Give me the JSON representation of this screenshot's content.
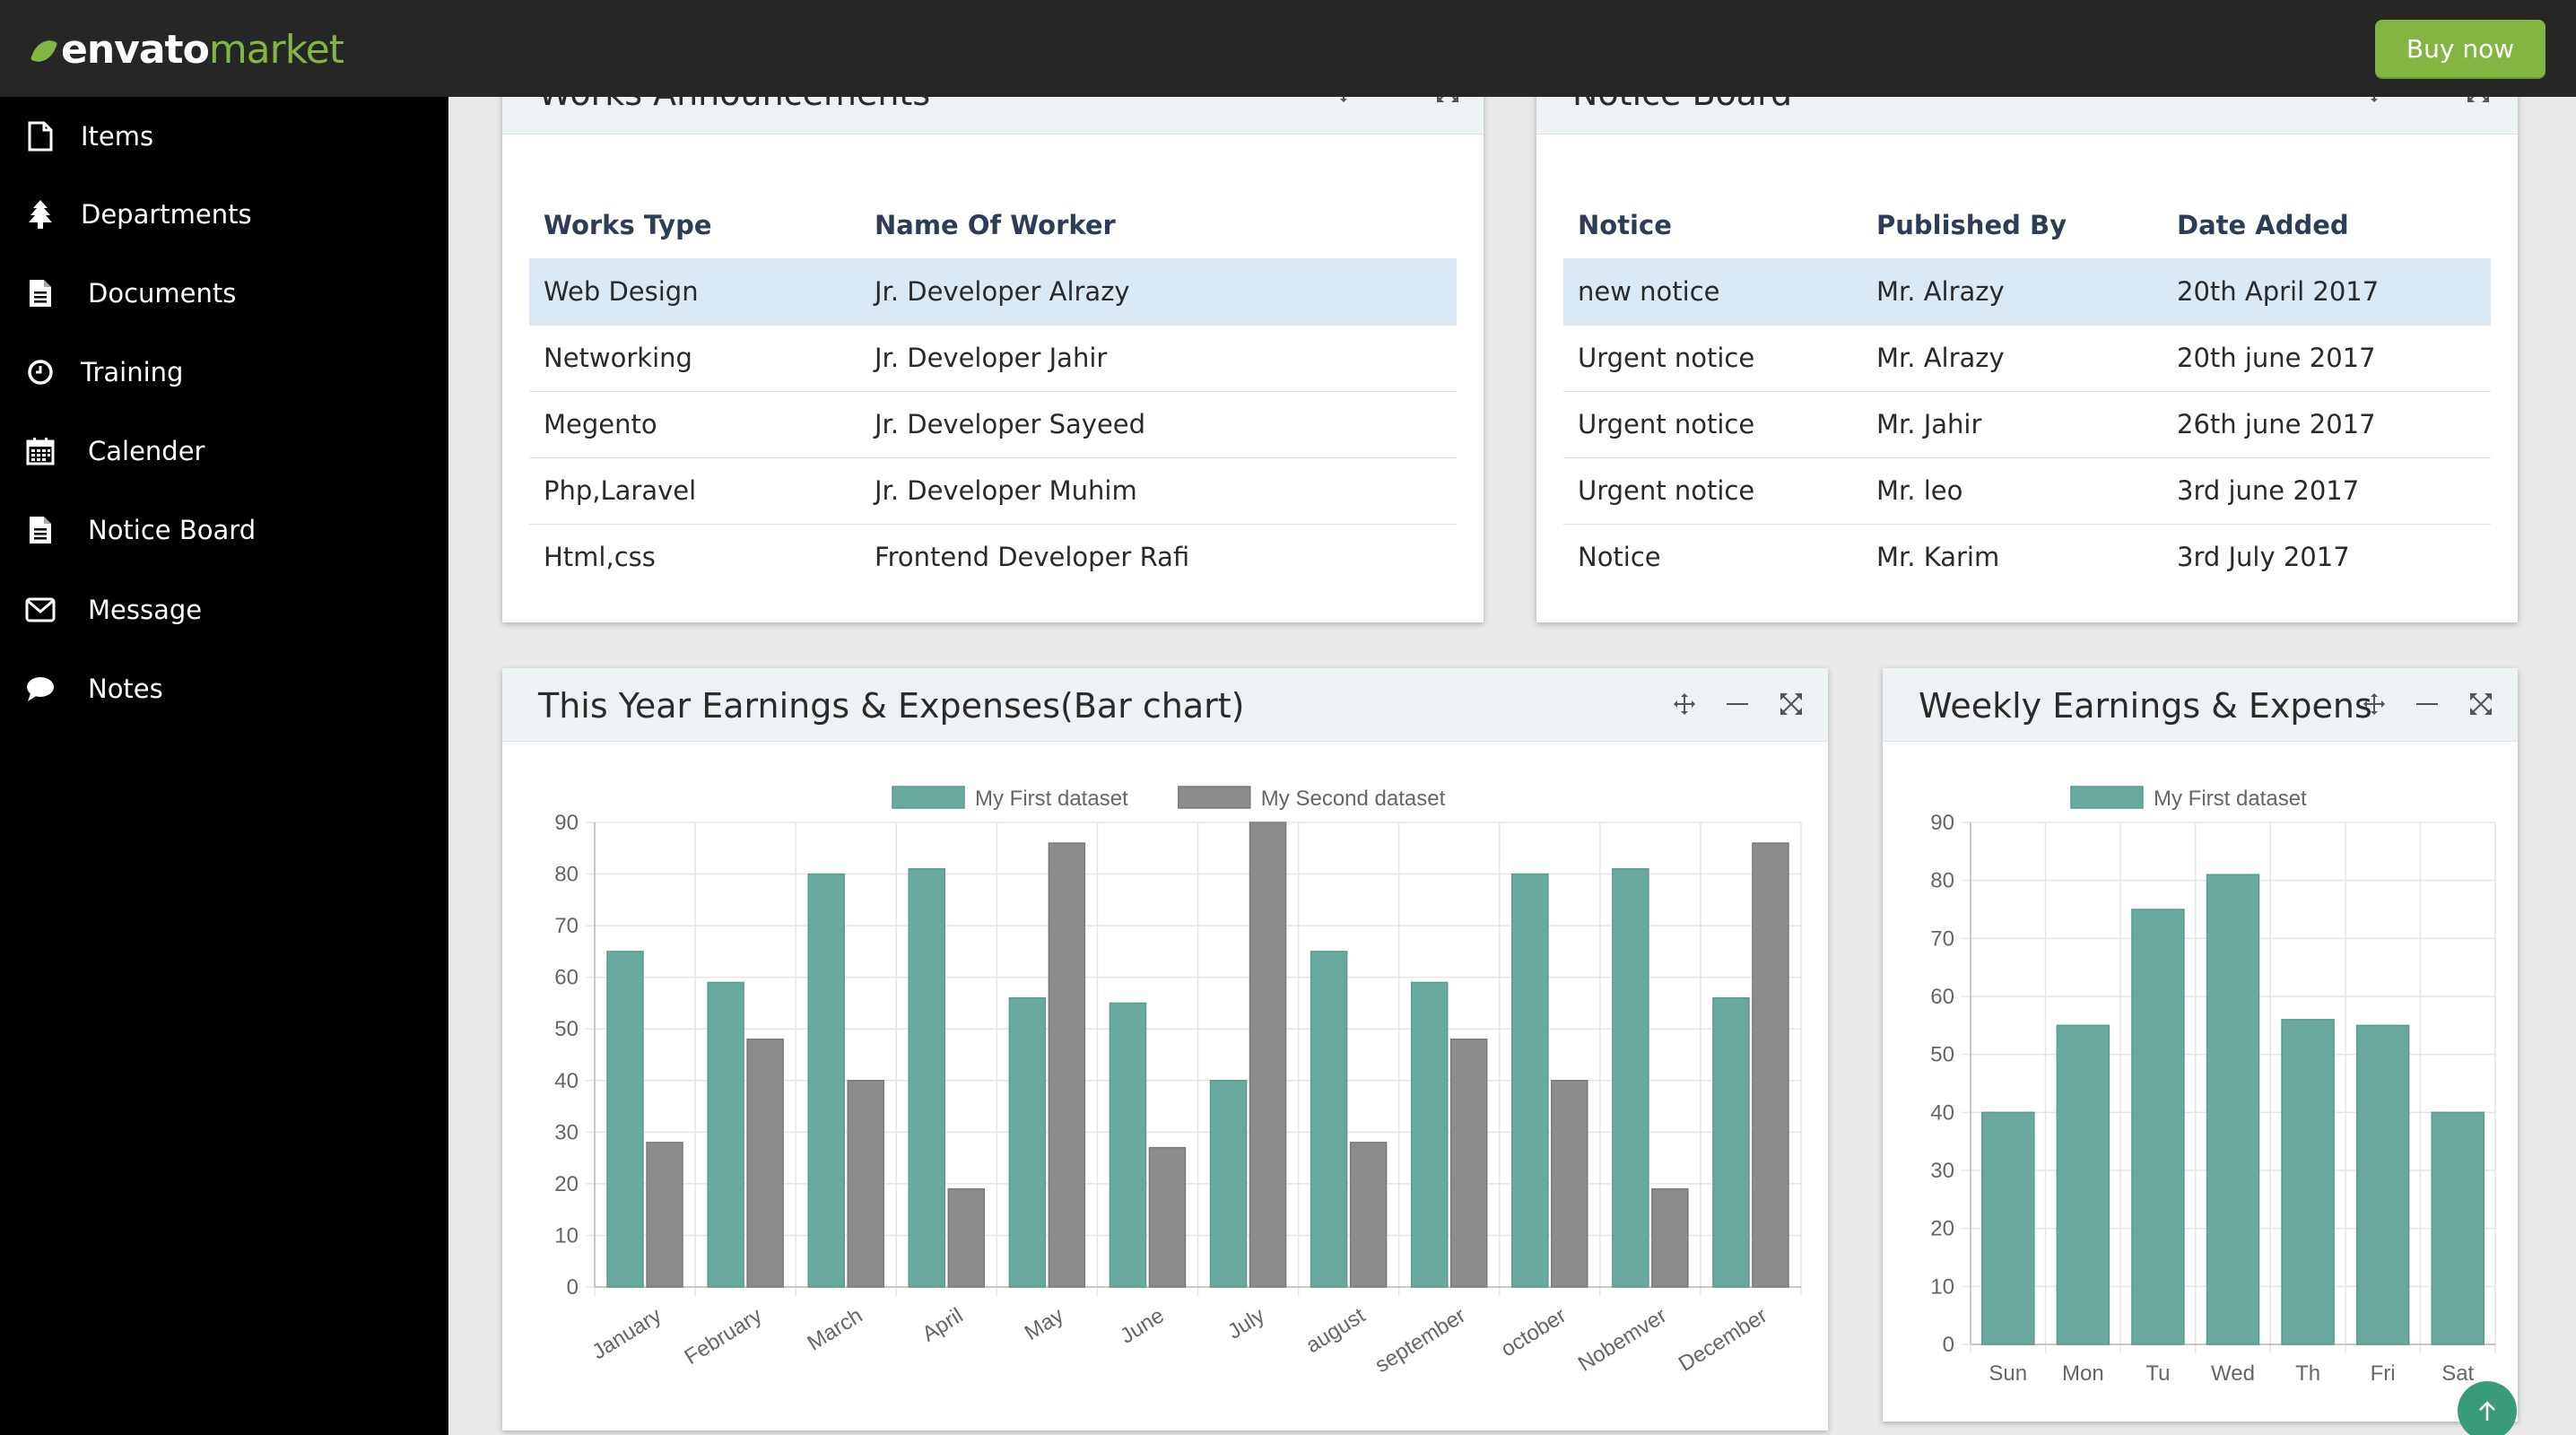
{
  "brand": {
    "name_a": "envato",
    "name_b": "market",
    "buy_label": "Buy now"
  },
  "sidebar": {
    "items": [
      {
        "label": "Items",
        "icon": "file-icon"
      },
      {
        "label": "Departments",
        "icon": "tree-icon"
      },
      {
        "label": "Documents",
        "icon": "document-icon"
      },
      {
        "label": "Training",
        "icon": "clock-icon"
      },
      {
        "label": "Calender",
        "icon": "calendar-icon"
      },
      {
        "label": "Notice Board",
        "icon": "document-icon"
      },
      {
        "label": "Message",
        "icon": "envelope-icon"
      },
      {
        "label": "Notes",
        "icon": "comment-icon"
      }
    ]
  },
  "works": {
    "title": "Works Announcements",
    "headers": [
      "Works Type",
      "Name Of Worker"
    ],
    "rows": [
      [
        "Web Design",
        "Jr. Developer Alrazy"
      ],
      [
        "Networking",
        "Jr. Developer Jahir"
      ],
      [
        "Megento",
        "Jr. Developer Sayeed"
      ],
      [
        "Php,Laravel",
        "Jr. Developer Muhim"
      ],
      [
        "Html,css",
        "Frontend Developer Rafi"
      ]
    ]
  },
  "notice": {
    "title": "Notice Board",
    "headers": [
      "Notice",
      "Published By",
      "Date Added"
    ],
    "rows": [
      [
        "new notice",
        "Mr. Alrazy",
        "20th April 2017"
      ],
      [
        "Urgent notice",
        "Mr. Alrazy",
        "20th june 2017"
      ],
      [
        "Urgent notice",
        "Mr. Jahir",
        "26th june 2017"
      ],
      [
        "Urgent notice",
        "Mr. leo",
        "3rd june 2017"
      ],
      [
        "Notice",
        "Mr. Karim",
        "3rd July 2017"
      ]
    ]
  },
  "yearly": {
    "title": "This Year Earnings & Expenses(Bar chart)"
  },
  "weekly": {
    "title": "Weekly Earnings & Expens"
  },
  "colors": {
    "series1": "#6aaa9e",
    "series2": "#8c8c8c",
    "accent": "#82b541"
  },
  "chart_data": [
    {
      "type": "bar",
      "title": "This Year Earnings & Expenses(Bar chart)",
      "categories": [
        "January",
        "February",
        "March",
        "April",
        "May",
        "June",
        "July",
        "august",
        "september",
        "october",
        "Nobemver",
        "December"
      ],
      "series": [
        {
          "name": "My First dataset",
          "values": [
            65,
            59,
            80,
            81,
            56,
            55,
            40,
            65,
            59,
            80,
            81,
            56
          ]
        },
        {
          "name": "My Second dataset",
          "values": [
            28,
            48,
            40,
            19,
            86,
            27,
            90,
            28,
            48,
            40,
            19,
            86
          ]
        }
      ],
      "ylim": [
        0,
        90
      ],
      "yticks": [
        0,
        10,
        20,
        30,
        40,
        50,
        60,
        70,
        80,
        90
      ],
      "legend": "top-center",
      "grid": true
    },
    {
      "type": "bar",
      "title": "Weekly Earnings & Expens",
      "categories": [
        "Sun",
        "Mon",
        "Tu",
        "Wed",
        "Th",
        "Fri",
        "Sat"
      ],
      "series": [
        {
          "name": "My First dataset",
          "values": [
            40,
            55,
            75,
            81,
            56,
            55,
            40
          ]
        }
      ],
      "ylim": [
        0,
        90
      ],
      "yticks": [
        0,
        10,
        20,
        30,
        40,
        50,
        60,
        70,
        80,
        90
      ],
      "legend": "top-center",
      "grid": true
    }
  ]
}
